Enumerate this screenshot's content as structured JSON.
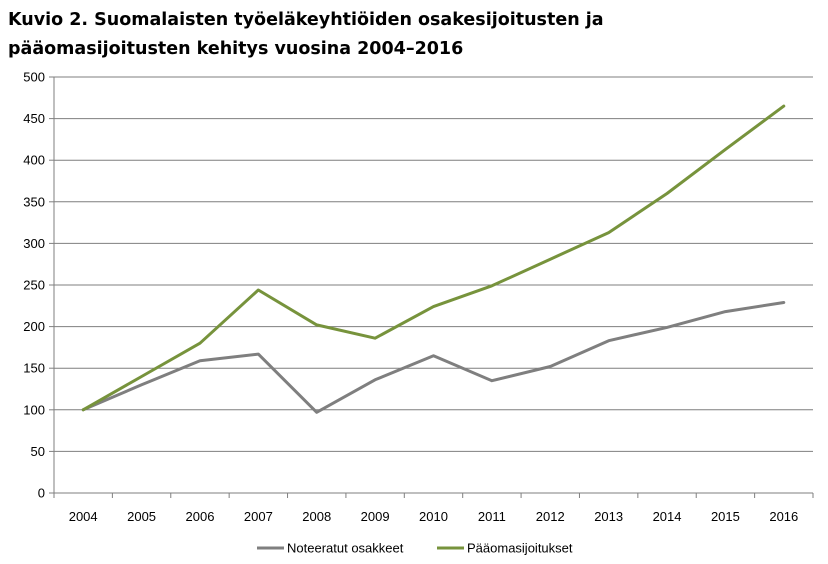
{
  "title_line1": "Kuvio 2. Suomalaisten työeläkeyhtiöiden osakesijoitusten ja",
  "title_line2": "pääomasijoitusten kehitys vuosina 2004–2016",
  "colors": {
    "grid": "#7f7f7f",
    "axis": "#7f7f7f"
  },
  "chart_data": {
    "type": "line",
    "title": "Kuvio 2. Suomalaisten työeläkeyhtiöiden osakesijoitusten ja pääomasijoitusten kehitys vuosina 2004–2016",
    "xlabel": "",
    "ylabel": "",
    "categories": [
      "2004",
      "2005",
      "2006",
      "2007",
      "2008",
      "2009",
      "2010",
      "2011",
      "2012",
      "2013",
      "2014",
      "2015",
      "2016"
    ],
    "ylim": [
      0,
      500
    ],
    "yticks": [
      0,
      50,
      100,
      150,
      200,
      250,
      300,
      350,
      400,
      450,
      500
    ],
    "grid": true,
    "legend": "bottom",
    "series": [
      {
        "name": "Noteeratut osakkeet",
        "color": "#7f7f7f",
        "values": [
          100,
          130,
          159,
          167,
          97,
          136,
          165,
          135,
          152,
          183,
          199,
          218,
          229
        ]
      },
      {
        "name": "Pääomasijoitukset",
        "color": "#77933c",
        "values": [
          100,
          140,
          180,
          244,
          202,
          186,
          224,
          249,
          281,
          313,
          360,
          413,
          465
        ]
      }
    ]
  }
}
